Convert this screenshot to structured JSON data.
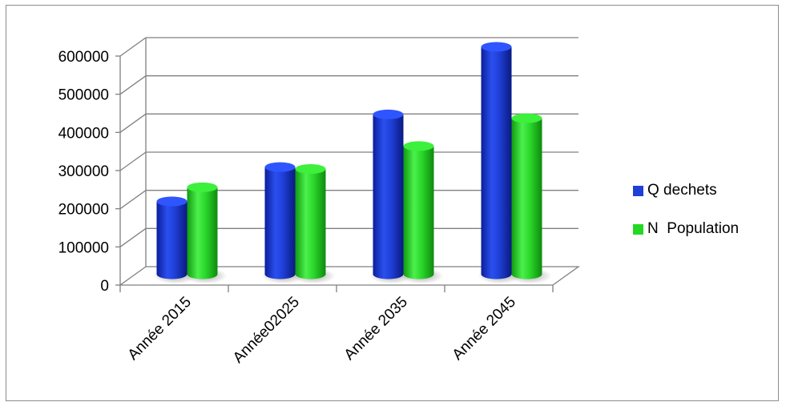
{
  "chart_data": {
    "type": "bar",
    "categories": [
      "Année 2015",
      "Année02025",
      "Année 2035",
      "Année 2045"
    ],
    "series": [
      {
        "name": "Q dechets",
        "values": [
          195000,
          285000,
          423000,
          600000
        ],
        "color": "#1f3fd6"
      },
      {
        "name": "N  Population",
        "values": [
          232000,
          280000,
          340000,
          413000
        ],
        "color": "#22d822"
      }
    ],
    "y_ticks": [
      "0",
      "100000",
      "200000",
      "300000",
      "400000",
      "500000",
      "600000"
    ],
    "ylim": [
      0,
      600000
    ],
    "grid": true,
    "legend_position": "right",
    "style": "3d-cylinder"
  }
}
